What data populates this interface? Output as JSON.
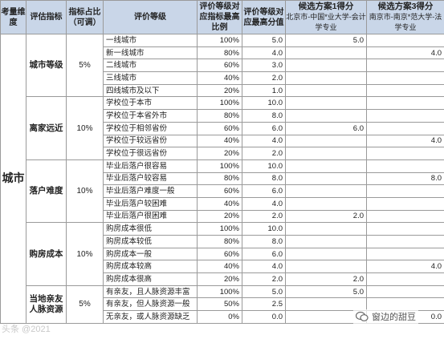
{
  "headers": {
    "dimension": "考量维度",
    "indicator": "评估指标",
    "weight": "指标占比（可调）",
    "level": "评价等级",
    "ratio": "评价等级对应指标最高比例",
    "max_score": "评价等级对应最高分值",
    "option1_title": "候选方案1得分",
    "option1_sub": "北京市-中国*业大学-会计学专业",
    "option3_title": "候选方案3得分",
    "option3_sub": "南京市-南京*范大学-法学专业"
  },
  "dimension_label": "城市",
  "groups": [
    {
      "indicator": "城市等级",
      "weight": "5%",
      "rows": [
        {
          "level": "一线城市",
          "ratio": "100%",
          "max": "5.0",
          "opt1": "5.0",
          "opt3": ""
        },
        {
          "level": "新一线城市",
          "ratio": "80%",
          "max": "4.0",
          "opt1": "",
          "opt3": "4.0"
        },
        {
          "level": "二线城市",
          "ratio": "60%",
          "max": "3.0",
          "opt1": "",
          "opt3": ""
        },
        {
          "level": "三线城市",
          "ratio": "40%",
          "max": "2.0",
          "opt1": "",
          "opt3": ""
        },
        {
          "level": "四线城市及以下",
          "ratio": "20%",
          "max": "1.0",
          "opt1": "",
          "opt3": ""
        }
      ]
    },
    {
      "indicator": "离家远近",
      "weight": "10%",
      "rows": [
        {
          "level": "学校位于本市",
          "ratio": "100%",
          "max": "10.0",
          "opt1": "",
          "opt3": ""
        },
        {
          "level": "学校位于本省外市",
          "ratio": "80%",
          "max": "8.0",
          "opt1": "",
          "opt3": ""
        },
        {
          "level": "学校位于相邻省份",
          "ratio": "60%",
          "max": "6.0",
          "opt1": "6.0",
          "opt3": ""
        },
        {
          "level": "学校位于较远省份",
          "ratio": "40%",
          "max": "4.0",
          "opt1": "",
          "opt3": "4.0"
        },
        {
          "level": "学校位于很远省份",
          "ratio": "20%",
          "max": "2.0",
          "opt1": "",
          "opt3": ""
        }
      ]
    },
    {
      "indicator": "落户难度",
      "weight": "10%",
      "rows": [
        {
          "level": "毕业后落户很容易",
          "ratio": "100%",
          "max": "10.0",
          "opt1": "",
          "opt3": ""
        },
        {
          "level": "毕业后落户较容易",
          "ratio": "80%",
          "max": "8.0",
          "opt1": "",
          "opt3": "8.0"
        },
        {
          "level": "毕业后落户难度一般",
          "ratio": "60%",
          "max": "6.0",
          "opt1": "",
          "opt3": ""
        },
        {
          "level": "毕业后落户较困难",
          "ratio": "40%",
          "max": "4.0",
          "opt1": "",
          "opt3": ""
        },
        {
          "level": "毕业后落户很困难",
          "ratio": "20%",
          "max": "2.0",
          "opt1": "2.0",
          "opt3": ""
        }
      ]
    },
    {
      "indicator": "购房成本",
      "weight": "10%",
      "rows": [
        {
          "level": "购房成本很低",
          "ratio": "100%",
          "max": "10.0",
          "opt1": "",
          "opt3": ""
        },
        {
          "level": "购房成本较低",
          "ratio": "80%",
          "max": "8.0",
          "opt1": "",
          "opt3": ""
        },
        {
          "level": "购房成本一般",
          "ratio": "60%",
          "max": "6.0",
          "opt1": "",
          "opt3": ""
        },
        {
          "level": "购房成本较高",
          "ratio": "40%",
          "max": "4.0",
          "opt1": "",
          "opt3": "4.0"
        },
        {
          "level": "购房成本很高",
          "ratio": "20%",
          "max": "2.0",
          "opt1": "2.0",
          "opt3": ""
        }
      ]
    },
    {
      "indicator": "当地亲友人脉资源",
      "weight": "5%",
      "rows": [
        {
          "level": "有亲友，且人脉资源丰富",
          "ratio": "100%",
          "max": "5.0",
          "opt1": "5.0",
          "opt3": ""
        },
        {
          "level": "有亲友，但人脉资源一般",
          "ratio": "50%",
          "max": "2.5",
          "opt1": "",
          "opt3": ""
        },
        {
          "level": "无亲友，或人脉资源缺乏",
          "ratio": "0%",
          "max": "0.0",
          "opt1": "",
          "opt3": "0.0"
        }
      ]
    }
  ],
  "watermarks": {
    "left": "头条 @2021",
    "right": "窗边的甜豆"
  },
  "colors": {
    "header_bg": "#c9d6e8",
    "border": "#9a9a9a"
  }
}
